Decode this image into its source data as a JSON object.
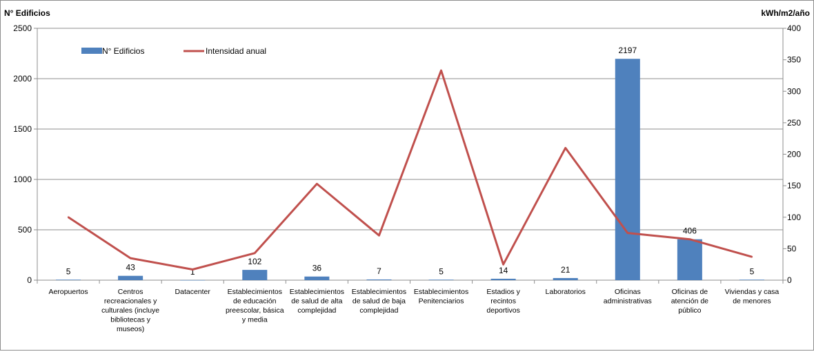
{
  "chart_data": {
    "type": "bar",
    "categories": [
      [
        "Aeropuertos"
      ],
      [
        "Centros",
        "recreacionales y",
        "culturales (incluye",
        "bibliotecas y",
        "museos)"
      ],
      [
        "Datacenter"
      ],
      [
        "Establecimientos",
        "de educación",
        "preescolar, básica",
        "y media"
      ],
      [
        "Establecimientos",
        "de salud de alta",
        "complejidad"
      ],
      [
        "Establecimientos",
        "de salud de baja",
        "complejidad"
      ],
      [
        "Establecimientos",
        "Penitenciarios"
      ],
      [
        "Estadios y",
        "recintos",
        "deportivos"
      ],
      [
        "Laboratorios"
      ],
      [
        "Oficinas",
        "administrativas"
      ],
      [
        "Oficinas de",
        "atención de",
        "público"
      ],
      [
        "Viviendas y casa",
        "de menores"
      ]
    ],
    "series": [
      {
        "name": "N° Edificios",
        "chart": "bar",
        "axis": "left",
        "color": "#4f81bd",
        "values": [
          5,
          43,
          1,
          102,
          36,
          7,
          5,
          14,
          21,
          2197,
          406,
          5
        ],
        "labels": [
          "5",
          "43",
          "1",
          "102",
          "36",
          "7",
          "5",
          "14",
          "21",
          "2197",
          "406",
          "5"
        ]
      },
      {
        "name": "Intensidad anual",
        "chart": "line",
        "axis": "right",
        "color": "#c0504d",
        "values": [
          100,
          35,
          17,
          43,
          153,
          71,
          333,
          25,
          210,
          75,
          65,
          37
        ]
      }
    ],
    "y_left": {
      "label": "N° Edificios",
      "range": [
        0,
        2500
      ],
      "ticks": [
        "0",
        "500",
        "1000",
        "1500",
        "2000",
        "2500"
      ]
    },
    "y_right": {
      "label": "kWh/m2/año",
      "range": [
        0,
        400
      ],
      "ticks": [
        "0",
        "50",
        "100",
        "150",
        "200",
        "250",
        "300",
        "350",
        "400"
      ]
    },
    "grid": true,
    "legend": "top-left"
  }
}
